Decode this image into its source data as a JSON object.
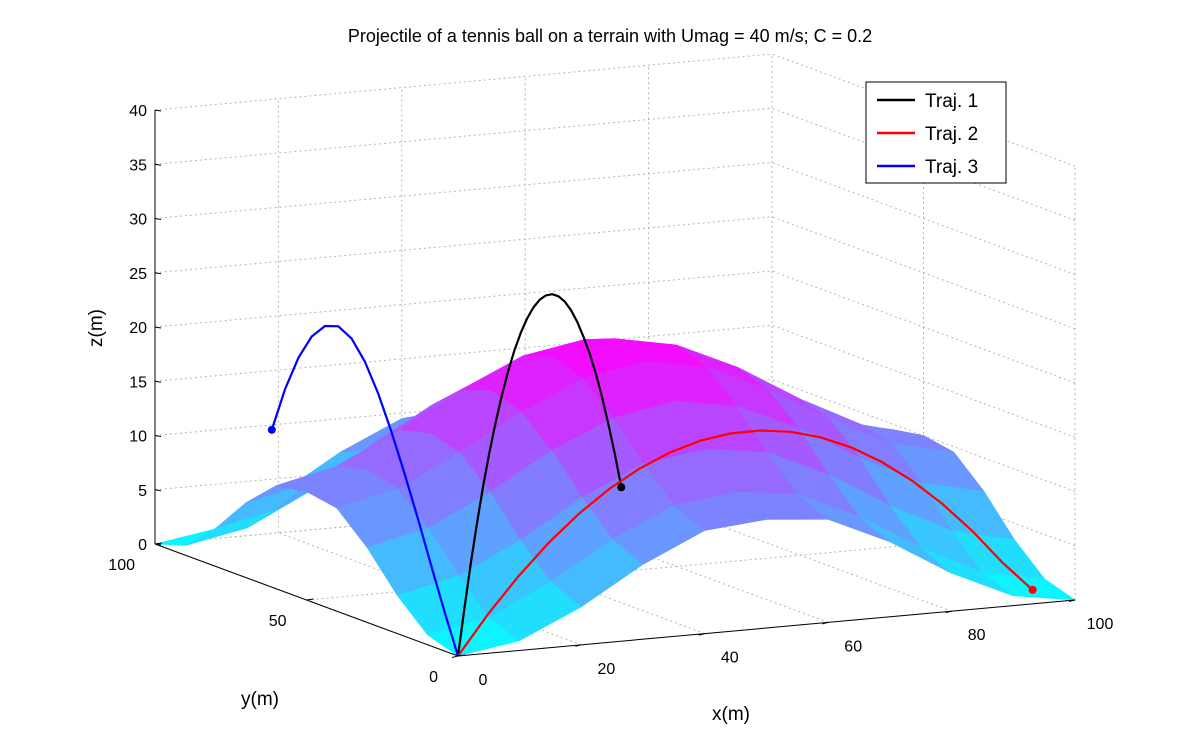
{
  "chart_data": {
    "type": "surface-3d",
    "title": "Projectile of a tennis ball on a terrain with Umag = 40 m/s; C = 0.2",
    "xlabel": "x(m)",
    "ylabel": "y(m)",
    "zlabel": "z(m)",
    "xlim": [
      0,
      100
    ],
    "ylim": [
      0,
      100
    ],
    "zlim": [
      0,
      40
    ],
    "x_ticks": [
      "0",
      "20",
      "40",
      "60",
      "80",
      "100"
    ],
    "y_ticks": [
      "0",
      "50",
      "100"
    ],
    "z_ticks": [
      "0",
      "5",
      "10",
      "15",
      "20",
      "25",
      "30",
      "35",
      "40"
    ],
    "grid": true,
    "colormap": [
      "#00ffff",
      "#ff00ff"
    ],
    "legend_position": "top-right",
    "surface": {
      "x": [
        0,
        10,
        20,
        30,
        40,
        50,
        60,
        70,
        80,
        90,
        100
      ],
      "y": [
        0,
        10,
        20,
        30,
        40,
        50,
        60,
        70,
        80,
        90,
        100
      ],
      "z": [
        [
          0.0,
          0.9,
          3.5,
          6.9,
          9.5,
          10.0,
          9.5,
          6.9,
          3.5,
          0.9,
          0.0
        ],
        [
          0.9,
          2.0,
          4.8,
          8.2,
          10.8,
          11.5,
          10.8,
          8.2,
          4.8,
          2.0,
          0.9
        ],
        [
          3.5,
          4.8,
          7.6,
          11.0,
          13.6,
          14.4,
          13.6,
          11.0,
          7.6,
          4.8,
          3.5
        ],
        [
          6.9,
          8.2,
          11.0,
          14.3,
          16.8,
          17.8,
          16.8,
          14.3,
          11.0,
          8.2,
          6.9
        ],
        [
          9.5,
          10.8,
          13.6,
          16.8,
          19.4,
          20.4,
          19.4,
          16.8,
          13.6,
          10.8,
          9.5
        ],
        [
          10.0,
          11.5,
          14.4,
          17.8,
          20.4,
          21.5,
          20.4,
          17.8,
          14.4,
          11.5,
          10.0
        ],
        [
          9.5,
          10.8,
          13.6,
          16.8,
          19.4,
          20.4,
          19.4,
          16.8,
          13.6,
          10.8,
          9.5
        ],
        [
          6.9,
          8.2,
          11.0,
          14.3,
          16.8,
          17.8,
          16.8,
          14.3,
          11.0,
          8.2,
          6.9
        ],
        [
          3.5,
          4.8,
          7.6,
          11.0,
          13.6,
          14.4,
          13.6,
          11.0,
          7.6,
          4.8,
          3.5
        ],
        [
          0.9,
          2.0,
          4.8,
          8.2,
          10.8,
          11.5,
          10.8,
          8.2,
          4.8,
          2.0,
          0.9
        ],
        [
          0.0,
          0.9,
          3.5,
          6.9,
          9.5,
          10.0,
          9.5,
          6.9,
          3.5,
          0.9,
          0.0
        ]
      ]
    },
    "series": [
      {
        "name": "Traj. 1",
        "color": "#000000",
        "x": [
          0,
          2,
          4,
          6,
          8,
          10,
          12,
          14,
          16,
          18,
          20,
          22,
          24,
          26,
          28,
          30,
          32,
          34,
          36,
          38,
          40,
          42,
          44,
          46,
          48,
          50,
          52
        ],
        "y": [
          0,
          2,
          4,
          6,
          8,
          10,
          12,
          14,
          16,
          18,
          20,
          22,
          24,
          26,
          28,
          30,
          32,
          34,
          36,
          38,
          40,
          42,
          44,
          46,
          48,
          50,
          52
        ],
        "z": [
          0,
          4,
          7.8,
          11.2,
          14.4,
          17.2,
          19.7,
          21.9,
          23.8,
          25.4,
          26.7,
          27.7,
          28.4,
          28.8,
          28.9,
          28.7,
          28.2,
          27.4,
          26.3,
          24.9,
          23.2,
          21.3,
          19.1,
          16.6,
          13.8,
          10.8,
          7.5
        ]
      },
      {
        "name": "Traj. 2",
        "color": "#ff0000",
        "x": [
          0,
          5,
          10,
          15,
          20,
          25,
          30,
          35,
          40,
          45,
          50,
          55,
          60,
          65,
          70,
          75,
          80,
          85,
          90,
          95
        ],
        "y": [
          0,
          0.2,
          0.4,
          0.6,
          0.8,
          1.0,
          1.2,
          1.4,
          1.6,
          1.8,
          2.0,
          2.2,
          2.4,
          2.6,
          2.8,
          3.0,
          3.2,
          3.4,
          3.6,
          3.8
        ],
        "z": [
          0,
          3.6,
          6.8,
          9.6,
          12.0,
          14.0,
          15.6,
          16.8,
          17.6,
          18.0,
          18.0,
          17.6,
          16.8,
          15.6,
          14.0,
          12.0,
          9.6,
          6.8,
          3.6,
          0.8
        ]
      },
      {
        "name": "Traj. 3",
        "color": "#0000ff",
        "x": [
          0,
          0.3,
          0.6,
          0.9,
          1.2,
          1.5,
          1.8,
          2.1,
          2.4,
          2.7,
          3.0,
          3.3,
          3.6,
          3.9,
          4.2
        ],
        "y": [
          0,
          5,
          10,
          15,
          20,
          25,
          30,
          35,
          40,
          45,
          50,
          55,
          60,
          65,
          70
        ],
        "z": [
          0,
          3.5,
          7.2,
          11.0,
          14.6,
          18.0,
          21.0,
          23.4,
          25.0,
          25.6,
          25.1,
          23.6,
          21.1,
          17.7,
          13.4
        ]
      }
    ]
  }
}
